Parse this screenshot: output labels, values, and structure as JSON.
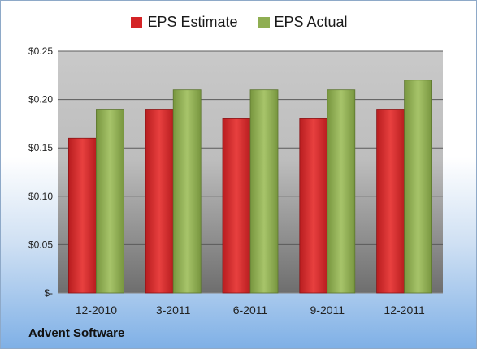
{
  "company": "Advent Software",
  "colors": {
    "estimate": "#d42426",
    "actual": "#8fae52",
    "plot_bg_top": "#c9c9c9",
    "plot_bg_bottom": "#6e6e6e"
  },
  "chart_data": {
    "type": "bar",
    "categories": [
      "12-2010",
      "3-2011",
      "6-2011",
      "9-2011",
      "12-2011"
    ],
    "series": [
      {
        "name": "EPS Estimate",
        "values": [
          0.16,
          0.19,
          0.18,
          0.18,
          0.19
        ]
      },
      {
        "name": "EPS Actual",
        "values": [
          0.19,
          0.21,
          0.21,
          0.21,
          0.22
        ]
      }
    ],
    "yticks": [
      "$-",
      "$0.05",
      "$0.10",
      "$0.15",
      "$0.20",
      "$0.25"
    ],
    "ylim": [
      0,
      0.25
    ],
    "grid": true,
    "legend_position": "top"
  }
}
